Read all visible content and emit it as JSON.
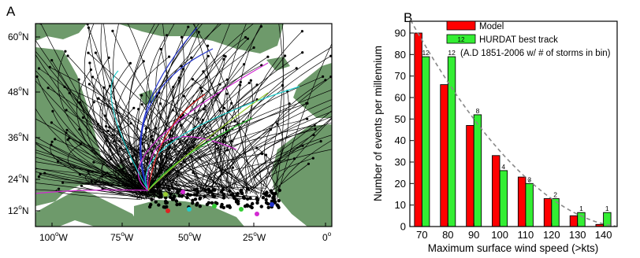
{
  "panel_a": {
    "label": "A",
    "lat_ticks": [
      "60",
      "48",
      "36",
      "24",
      "12"
    ],
    "lat_suffix": "N",
    "lon_ticks": [
      "100",
      "75",
      "50",
      "25",
      "0"
    ],
    "lon_suffix": "W",
    "degree_mark": "o",
    "colors": {
      "ocean": "#ffffff",
      "land": "#6e9a6b",
      "tracks": "#000000",
      "highlight_tracks": [
        "#2233cc",
        "#d22ad2",
        "#22cccc",
        "#33cc33",
        "#dd2222",
        "#99cc33"
      ]
    }
  },
  "chart_data": {
    "type": "bar",
    "panel_label": "B",
    "categories": [
      "70",
      "80",
      "90",
      "100",
      "110",
      "120",
      "130",
      "140"
    ],
    "series": [
      {
        "name": "Model",
        "color": "#ff0000",
        "values": [
          90,
          66,
          47,
          33,
          23,
          13,
          5,
          1
        ]
      },
      {
        "name": "HURDAT best track",
        "color": "#33ee33",
        "values": [
          79,
          79,
          52,
          26,
          20,
          13,
          6.5,
          6.5
        ],
        "storm_counts": [
          "12",
          "12",
          "8",
          "4",
          "3",
          "2",
          "1",
          "1"
        ]
      }
    ],
    "legend_note": "(A.D 1851-2006 w/ # of storms in bin)",
    "legend_swatch_count": "12",
    "xlabel": "Maximum surface wind speed (>kts)",
    "ylabel": "Number of events per millennium",
    "ylim": [
      0,
      90
    ],
    "y_ticks": [
      "0",
      "10",
      "20",
      "30",
      "40",
      "50",
      "60",
      "70",
      "80",
      "90"
    ],
    "fit_curve": {
      "style": "dashed",
      "color": "#888888"
    },
    "legend_position": "top-right",
    "grid": false
  }
}
